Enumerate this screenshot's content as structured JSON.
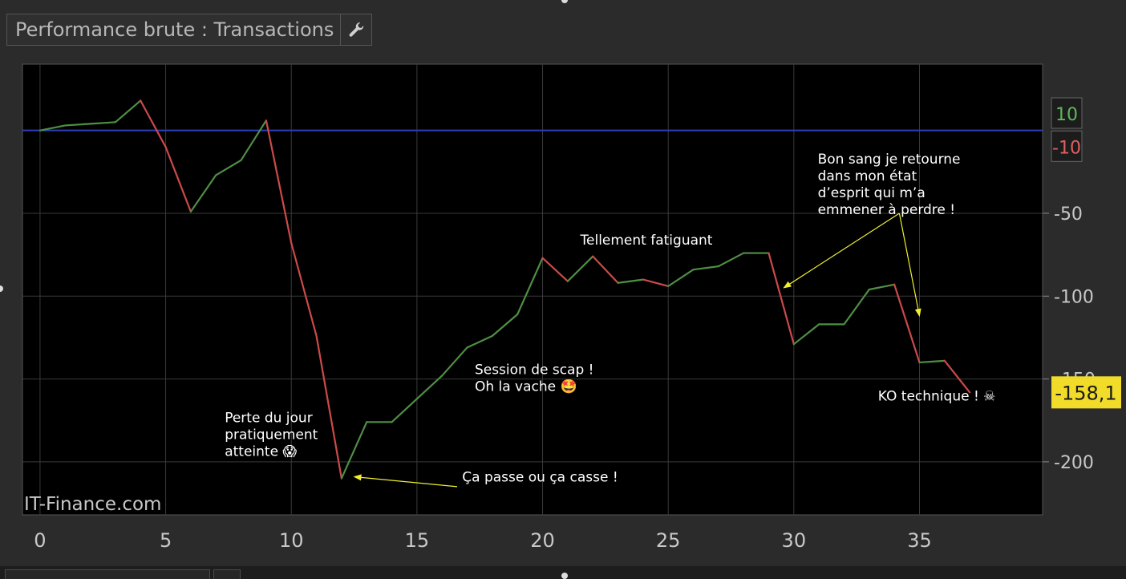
{
  "window": {
    "title": "Performance brute : Transactions",
    "wrench_icon": "wrench-icon"
  },
  "watermark": "IT-Finance.com",
  "colors": {
    "up": "#4e8f43",
    "down": "#cc4a4a",
    "reference_line": "#2f3fb8",
    "plot_bg": "#000000",
    "grid": "#3a3a3a",
    "annotation": "#ffffff",
    "arrow": "#f0f030",
    "current_badge": "#f2dc2a"
  },
  "chart_data": {
    "type": "line",
    "x_ticks": [
      "0",
      "5",
      "10",
      "15",
      "20",
      "25",
      "30",
      "35"
    ],
    "y_ticks": [
      "-50",
      "-100",
      "-200"
    ],
    "xlim": [
      -0.7,
      39.9
    ],
    "ylim": [
      -232,
      40
    ],
    "grid": true,
    "reference_line_value": 0,
    "x": [
      0,
      1,
      2,
      3,
      4,
      5,
      6,
      7,
      8,
      9,
      10,
      11,
      12,
      13,
      14,
      15,
      16,
      17,
      18,
      19,
      20,
      21,
      22,
      23,
      24,
      25,
      26,
      27,
      28,
      29,
      30,
      31,
      32,
      33,
      34,
      35,
      36,
      37
    ],
    "y": [
      0,
      3,
      4,
      5,
      18,
      -10,
      -49,
      -27,
      -18,
      6,
      -68,
      -124,
      -210,
      -176,
      -176,
      -162,
      -148,
      -131,
      -124,
      -111,
      -77,
      -91,
      -76,
      -92,
      -90,
      -94,
      -84,
      -82,
      -74,
      -74,
      -129,
      -117,
      -117,
      -96,
      -93,
      -140,
      -139,
      -158.1
    ],
    "right_badges": [
      {
        "label": "10",
        "value": 10,
        "kind": "up"
      },
      {
        "label": "-10",
        "value": -10,
        "kind": "down"
      }
    ],
    "current_value_label": "-158,1",
    "current_value": -158.1,
    "hidden_tick_label": "-150",
    "annotations": [
      {
        "lines": [
          "Perte du jour",
          "pratiquement",
          "atteinte 😱"
        ],
        "x": 7.35,
        "y": -176
      },
      {
        "lines": [
          "Ça passe ou ça casse !"
        ],
        "x": 16.8,
        "y": -212
      },
      {
        "lines": [
          "Session de scap !",
          "Oh la vache 🤩"
        ],
        "x": 17.3,
        "y": -147
      },
      {
        "lines": [
          "Tellement fatiguant"
        ],
        "x": 21.5,
        "y": -69
      },
      {
        "lines": [
          "Bon sang je retourne",
          "dans mon état",
          "d’esprit qui m’a",
          "emmener à perdre !"
        ],
        "x": 30.95,
        "y": -20
      },
      {
        "lines": [
          "KO technique ! ☠"
        ],
        "x": 33.35,
        "y": -163
      }
    ],
    "arrows": [
      {
        "from": [
          16.6,
          -215
        ],
        "to": [
          12.5,
          -209
        ]
      },
      {
        "from": [
          34.2,
          -50
        ],
        "to": [
          29.6,
          -95
        ]
      },
      {
        "from": [
          34.2,
          -50
        ],
        "to": [
          35.0,
          -112
        ]
      }
    ]
  }
}
